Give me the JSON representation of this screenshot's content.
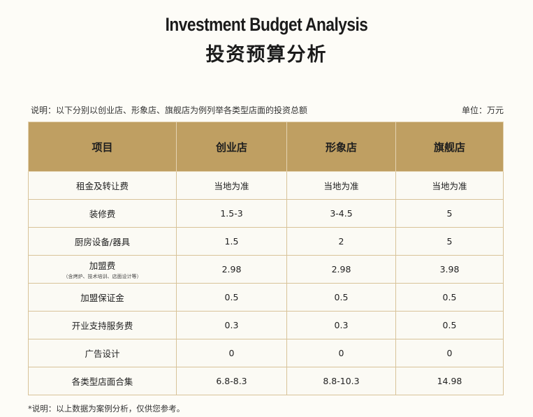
{
  "title_en": "Investment Budget Analysis",
  "title_cn": "投资预算分析",
  "note_top": "说明：以下分别以创业店、形象店、旗舰店为例列举各类型店面的投资总额",
  "unit": "单位：万元",
  "table": {
    "headers": [
      "项目",
      "创业店",
      "形象店",
      "旗舰店"
    ],
    "rows": [
      {
        "item": "租金及转让费",
        "sub": "",
        "values": [
          "当地为准",
          "当地为准",
          "当地为准"
        ]
      },
      {
        "item": "装修费",
        "sub": "",
        "values": [
          "1.5-3",
          "3-4.5",
          "5"
        ]
      },
      {
        "item": "厨房设备/器具",
        "sub": "",
        "values": [
          "1.5",
          "2",
          "5"
        ]
      },
      {
        "item": "加盟费",
        "sub": "（含烤炉、技术培训、店面设计等）",
        "values": [
          "2.98",
          "2.98",
          "3.98"
        ]
      },
      {
        "item": "加盟保证金",
        "sub": "",
        "values": [
          "0.5",
          "0.5",
          "0.5"
        ]
      },
      {
        "item": "开业支持服务费",
        "sub": "",
        "values": [
          "0.3",
          "0.3",
          "0.5"
        ]
      },
      {
        "item": "广告设计",
        "sub": "",
        "values": [
          "0",
          "0",
          "0"
        ]
      },
      {
        "item": "各类型店面合集",
        "sub": "",
        "values": [
          "6.8-8.3",
          "8.8-10.3",
          "14.98"
        ]
      }
    ]
  },
  "note_bottom": "*说明：以上数据为案例分析，仅供您参考。"
}
